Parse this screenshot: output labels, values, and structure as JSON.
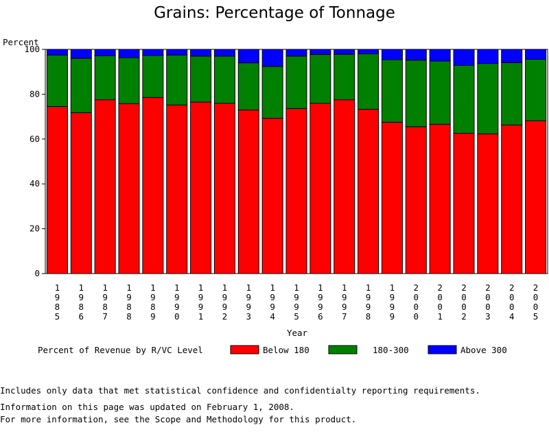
{
  "chart_data": {
    "type": "bar",
    "stacked": true,
    "title": "Grains: Percentage of Tonnage",
    "ylabel": "Percent",
    "xlabel": "Year",
    "ylim": [
      0,
      100
    ],
    "yticks": [
      0,
      20,
      40,
      60,
      80,
      100
    ],
    "legend_title": "Percent of Revenue by R/VC Level",
    "legend_position": "bottom",
    "categories": [
      "1985",
      "1986",
      "1987",
      "1988",
      "1989",
      "1990",
      "1991",
      "1992",
      "1993",
      "1994",
      "1995",
      "1996",
      "1997",
      "1998",
      "1999",
      "2000",
      "2001",
      "2002",
      "2003",
      "2004",
      "2005"
    ],
    "series": [
      {
        "name": "Below 180",
        "color": "#ff0000",
        "values": [
          74.5,
          71.8,
          77.5,
          75.8,
          78.5,
          75.2,
          76.5,
          76.0,
          73.0,
          69.3,
          73.6,
          76.0,
          77.5,
          73.3,
          67.5,
          65.5,
          66.6,
          62.6,
          62.3,
          66.3,
          68.2
        ]
      },
      {
        "name": "180-300",
        "color": "#008000",
        "values": [
          23.0,
          24.2,
          19.7,
          20.5,
          18.8,
          22.3,
          20.5,
          21.0,
          21.0,
          23.1,
          23.4,
          21.7,
          20.3,
          24.7,
          27.9,
          29.7,
          28.2,
          30.3,
          31.4,
          27.8,
          27.4
        ]
      },
      {
        "name": "Above 300",
        "color": "#0000ff",
        "values": [
          2.5,
          4.0,
          2.8,
          3.7,
          2.7,
          2.5,
          3.0,
          3.0,
          6.0,
          7.6,
          3.0,
          2.3,
          2.2,
          2.0,
          4.6,
          4.8,
          5.2,
          7.1,
          6.3,
          5.9,
          4.4
        ]
      }
    ]
  },
  "notes": {
    "line1": "Includes only data that met statistical confidence and confidentialty reporting requirements.",
    "line2": "For more information, see the Scope and Methodology for this product.",
    "updated": "Information on this page was updated on February 1, 2008."
  }
}
